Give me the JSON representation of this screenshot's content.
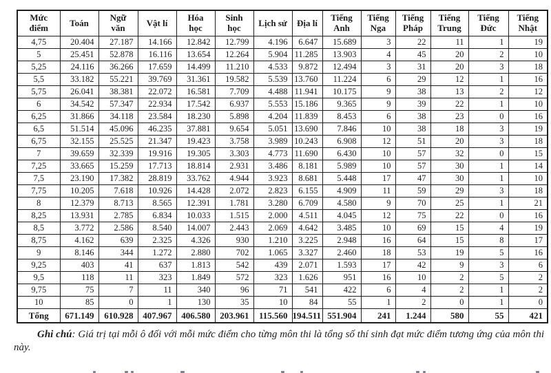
{
  "table": {
    "headers": [
      "Mức\nđiểm",
      "Toán",
      "Ngữ\nvăn",
      "Vật lí",
      "Hóa\nhọc",
      "Sinh\nhọc",
      "Lịch sử",
      "Địa lí",
      "Tiếng\nAnh",
      "Tiếng\nNga",
      "Tiếng\nPháp",
      "Tiếng\nTrung",
      "Tiếng\nĐức",
      "Tiếng\nNhật"
    ],
    "rows": [
      {
        "level": "4,75",
        "values": [
          "20.404",
          "27.187",
          "14.166",
          "12.842",
          "12.799",
          "4.196",
          "6.647",
          "15.689",
          "3",
          "22",
          "11",
          "1",
          "19"
        ]
      },
      {
        "level": "5",
        "values": [
          "25.451",
          "52.878",
          "16.116",
          "13.654",
          "12.264",
          "5.904",
          "11.285",
          "13.903",
          "4",
          "45",
          "20",
          "2",
          "10"
        ]
      },
      {
        "level": "5,25",
        "values": [
          "24.116",
          "36.266",
          "17.659",
          "14.499",
          "11.210",
          "4.533",
          "9.872",
          "12.494",
          "3",
          "31",
          "20",
          "3",
          "18"
        ]
      },
      {
        "level": "5,5",
        "values": [
          "33.182",
          "55.221",
          "39.769",
          "31.361",
          "19.582",
          "5.539",
          "13.760",
          "11.224",
          "6",
          "29",
          "12",
          "1",
          "16"
        ]
      },
      {
        "level": "5,75",
        "values": [
          "26.041",
          "38.381",
          "22.072",
          "16.581",
          "7.709",
          "4.488",
          "11.941",
          "10.175",
          "9",
          "38",
          "13",
          "2",
          "12"
        ]
      },
      {
        "level": "6",
        "values": [
          "34.542",
          "57.347",
          "22.934",
          "17.542",
          "6.937",
          "5.553",
          "15.186",
          "9.365",
          "9",
          "39",
          "22",
          "1",
          "10"
        ]
      },
      {
        "level": "6,25",
        "values": [
          "31.866",
          "34.118",
          "23.584",
          "18.230",
          "5.898",
          "4.204",
          "11.839",
          "8.453",
          "6",
          "38",
          "23",
          "0",
          "16"
        ]
      },
      {
        "level": "6,5",
        "values": [
          "51.514",
          "45.096",
          "46.235",
          "37.881",
          "9.654",
          "5.051",
          "13.690",
          "7.846",
          "10",
          "38",
          "18",
          "3",
          "19"
        ]
      },
      {
        "level": "6,75",
        "values": [
          "32.155",
          "25.525",
          "21.347",
          "19.423",
          "3.758",
          "3.989",
          "10.243",
          "6.908",
          "12",
          "51",
          "20",
          "3",
          "18"
        ]
      },
      {
        "level": "7",
        "values": [
          "39.659",
          "32.339",
          "19.916",
          "19.305",
          "3.303",
          "4.773",
          "11.690",
          "6.430",
          "10",
          "57",
          "32",
          "0",
          "15"
        ]
      },
      {
        "level": "7,25",
        "values": [
          "33.665",
          "15.259",
          "17.713",
          "18.814",
          "2.931",
          "3.486",
          "8.181",
          "5.989",
          "10",
          "57",
          "30",
          "1",
          "14"
        ]
      },
      {
        "level": "7,5",
        "values": [
          "23.190",
          "17.382",
          "28.819",
          "33.762",
          "4.944",
          "3.923",
          "8.681",
          "5.448",
          "17",
          "47",
          "30",
          "1",
          "10"
        ]
      },
      {
        "level": "7,75",
        "values": [
          "10.205",
          "7.618",
          "10.926",
          "14.428",
          "2.072",
          "2.823",
          "6.155",
          "4.909",
          "11",
          "59",
          "29",
          "3",
          "18"
        ]
      },
      {
        "level": "8",
        "values": [
          "12.379",
          "8.713",
          "8.565",
          "12.391",
          "1.781",
          "3.280",
          "6.709",
          "4.580",
          "9",
          "70",
          "25",
          "1",
          "21"
        ]
      },
      {
        "level": "8,25",
        "values": [
          "13.931",
          "2.785",
          "6.834",
          "10.033",
          "1.515",
          "2.000",
          "4.511",
          "4.045",
          "12",
          "75",
          "22",
          "0",
          "16"
        ]
      },
      {
        "level": "8,5",
        "values": [
          "3.772",
          "2.586",
          "8.540",
          "14.007",
          "2.443",
          "2.069",
          "4.642",
          "3.485",
          "10",
          "69",
          "15",
          "4",
          "19"
        ]
      },
      {
        "level": "8,75",
        "values": [
          "4.162",
          "639",
          "2.325",
          "4.326",
          "930",
          "1.210",
          "3.225",
          "2.948",
          "16",
          "64",
          "15",
          "8",
          "17"
        ]
      },
      {
        "level": "9",
        "values": [
          "8.146",
          "344",
          "1.272",
          "2.880",
          "702",
          "1.065",
          "3.327",
          "2.460",
          "18",
          "53",
          "19",
          "5",
          "16"
        ]
      },
      {
        "level": "9,25",
        "values": [
          "403",
          "41",
          "637",
          "1.813",
          "542",
          "439",
          "2.071",
          "1.593",
          "17",
          "42",
          "9",
          "3",
          "6"
        ]
      },
      {
        "level": "9,5",
        "values": [
          "118",
          "11",
          "323",
          "1.849",
          "572",
          "323",
          "1.626",
          "951",
          "16",
          "10",
          "2",
          "5",
          "2"
        ]
      },
      {
        "level": "9,75",
        "values": [
          "75",
          "7",
          "11",
          "340",
          "96",
          "71",
          "541",
          "422",
          "6",
          "4",
          "2",
          "1",
          "2"
        ]
      },
      {
        "level": "10",
        "values": [
          "85",
          "0",
          "1",
          "130",
          "35",
          "10",
          "84",
          "55",
          "1",
          "2",
          "0",
          "1",
          "0"
        ]
      }
    ],
    "total": {
      "label": "Tổng",
      "values": [
        "671.149",
        "610.928",
        "407.967",
        "406.580",
        "203.961",
        "115.560",
        "194.511",
        "551.904",
        "241",
        "1.244",
        "580",
        "55",
        "421"
      ]
    }
  },
  "note": {
    "label": "Ghi chú",
    "text": ": Giá trị tại mỗi ô đối với mỗi mức điểm cho từng môn thi là tổng số thí sinh đạt mức điểm tương ứng của môn thi này."
  },
  "colors": {
    "text": "#1c1c1c",
    "border": "#1f1f1f",
    "background": "#ffffff"
  }
}
